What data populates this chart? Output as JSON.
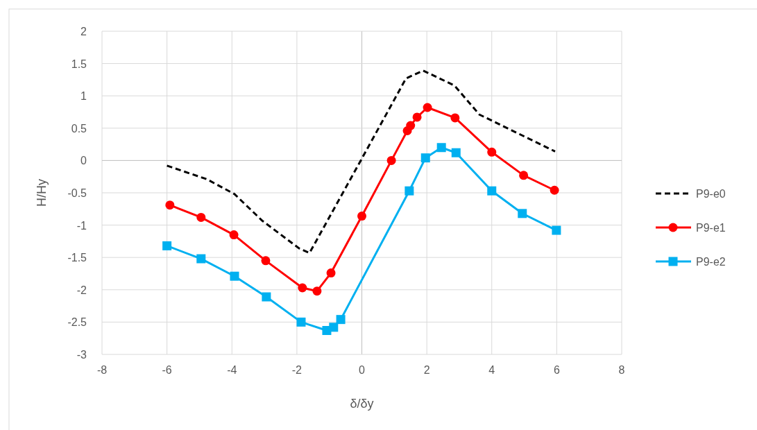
{
  "chart_data": {
    "type": "line",
    "xlabel": "δ/δy",
    "ylabel": "H/Hy",
    "xlim": [
      -8,
      8
    ],
    "xticks": [
      -8,
      -6,
      -4,
      -2,
      0,
      2,
      4,
      6,
      8
    ],
    "ylim": [
      -3,
      2
    ],
    "yticks": [
      -3,
      -2.5,
      -2,
      -1.5,
      -1,
      -0.5,
      0,
      0.5,
      1,
      1.5,
      2
    ],
    "grid": true,
    "legend": "right",
    "series": [
      {
        "name": "P9-e0",
        "color": "#000000",
        "line_style": "dashed",
        "marker": "none",
        "x": [
          -6,
          -4.77,
          -3.92,
          -3.07,
          -1.93,
          -1.61,
          0,
          1.36,
          1.89,
          2.85,
          3.62,
          5.95
        ],
        "values": [
          -0.08,
          -0.29,
          -0.52,
          -0.93,
          -1.36,
          -1.43,
          0.03,
          1.27,
          1.39,
          1.16,
          0.71,
          0.14
        ]
      },
      {
        "name": "P9-e1",
        "color": "#ff0000",
        "line_style": "solid",
        "marker": "circle",
        "x": [
          -5.91,
          -4.95,
          -3.94,
          -2.96,
          -1.83,
          -1.38,
          -0.95,
          0,
          0.91,
          1.4,
          1.5,
          1.7,
          2.02,
          2.87,
          4,
          4.98,
          5.93
        ],
        "values": [
          -0.69,
          -0.88,
          -1.15,
          -1.55,
          -1.97,
          -2.02,
          -1.74,
          -0.86,
          0,
          0.46,
          0.54,
          0.67,
          0.82,
          0.66,
          0.13,
          -0.23,
          -0.46
        ]
      },
      {
        "name": "P9-e2",
        "color": "#00b0f0",
        "line_style": "solid",
        "marker": "square",
        "x": [
          -6,
          -4.95,
          -3.92,
          -2.94,
          -1.87,
          -1.08,
          -0.87,
          -0.65,
          1.46,
          1.96,
          2.45,
          2.9,
          4,
          4.94,
          5.99
        ],
        "values": [
          -1.32,
          -1.52,
          -1.79,
          -2.11,
          -2.5,
          -2.63,
          -2.58,
          -2.46,
          -0.47,
          0.04,
          0.2,
          0.12,
          -0.47,
          -0.82,
          -1.08
        ]
      }
    ]
  }
}
